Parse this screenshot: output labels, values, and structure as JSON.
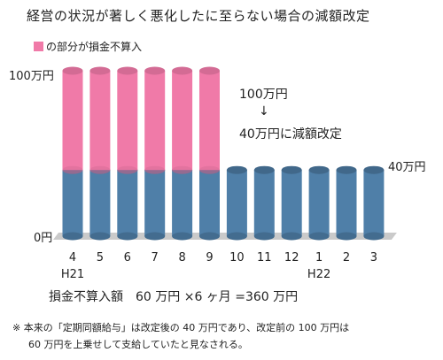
{
  "title": "経営の状況が著しく悪化したに至らない場合の減額改定",
  "legend_label": "の部分が損金不算入",
  "annotation": {
    "from": "100万円",
    "arrow": "↓",
    "to": "40万円に減額改定"
  },
  "right_label": "40万円",
  "formula": "損金不算入額　60 万円 ×6 ヶ月 =360 万円",
  "note_line1": "※ 本来の「定期同額給与」は改定後の 40 万円であり、改定前の 100 万円は",
  "note_line2": "60 万円を上乗せして支給していたと見なされる。",
  "colors": {
    "pink": "#f07aa8",
    "blue": "#4f7fa8",
    "floor": "#8a8a8a"
  },
  "chart_data": {
    "type": "bar",
    "categories": [
      "4",
      "5",
      "6",
      "7",
      "8",
      "9",
      "10",
      "11",
      "12",
      "1",
      "2",
      "3"
    ],
    "year_labels": [
      "H21",
      "",
      "",
      "",
      "",
      "",
      "",
      "",
      "",
      "H22",
      "",
      ""
    ],
    "series": [
      {
        "values": [
          40,
          40,
          40,
          40,
          40,
          40,
          40,
          40,
          40,
          40,
          40,
          40
        ]
      },
      {
        "values": [
          60,
          60,
          60,
          60,
          60,
          60,
          0,
          0,
          0,
          0,
          0,
          0
        ]
      }
    ],
    "y_tick_labels": [
      "0円",
      "100万円"
    ],
    "ylim": [
      0,
      100
    ],
    "stacked": true
  }
}
